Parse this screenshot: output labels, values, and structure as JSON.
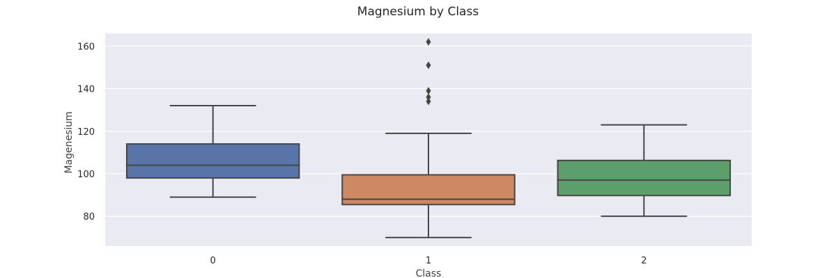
{
  "chart_data": {
    "type": "box",
    "title": "Magnesium by Class",
    "xlabel": "Class",
    "ylabel": "Magenesium",
    "categories": [
      "0",
      "1",
      "2"
    ],
    "ylim": [
      66,
      166
    ],
    "yticks": [
      80,
      100,
      120,
      140,
      160
    ],
    "grid": true,
    "boxes": [
      {
        "category": "0",
        "whisker_low": 89,
        "q1": 98,
        "median": 104,
        "q3": 114,
        "whisker_high": 132,
        "outliers": [],
        "color": "#5874a8"
      },
      {
        "category": "1",
        "whisker_low": 70,
        "q1": 85.5,
        "median": 88,
        "q3": 99.5,
        "whisker_high": 119,
        "outliers": [
          134,
          136,
          139,
          151,
          162
        ],
        "color": "#cd8963"
      },
      {
        "category": "2",
        "whisker_low": 80,
        "q1": 89.75,
        "median": 97,
        "q3": 106.25,
        "whisker_high": 123,
        "outliers": [],
        "color": "#5c9f6d"
      }
    ],
    "colors": {
      "plot_background": "#eaeaf2",
      "grid": "#ffffff",
      "lines": "#454545"
    }
  }
}
